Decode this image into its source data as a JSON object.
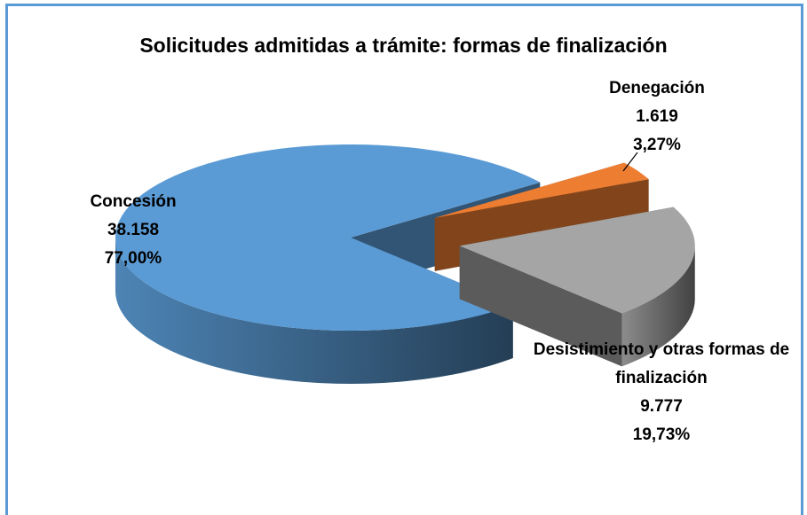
{
  "chart_data": {
    "type": "pie",
    "title": "Solicitudes admitidas a trámite: formas de finalización",
    "categories": [
      "Concesión",
      "Denegación",
      "Desistimiento y otras formas de finalización"
    ],
    "values": [
      38158,
      1619,
      9777
    ],
    "value_labels": [
      "38.158",
      "1.619",
      "9.777"
    ],
    "percents": [
      77,
      3.27,
      19.73
    ],
    "percent_labels": [
      "77,00%",
      "3,27%",
      "19,73%"
    ],
    "colors": [
      "#5b9bd5",
      "#ed7d31",
      "#a5a5a5"
    ]
  }
}
